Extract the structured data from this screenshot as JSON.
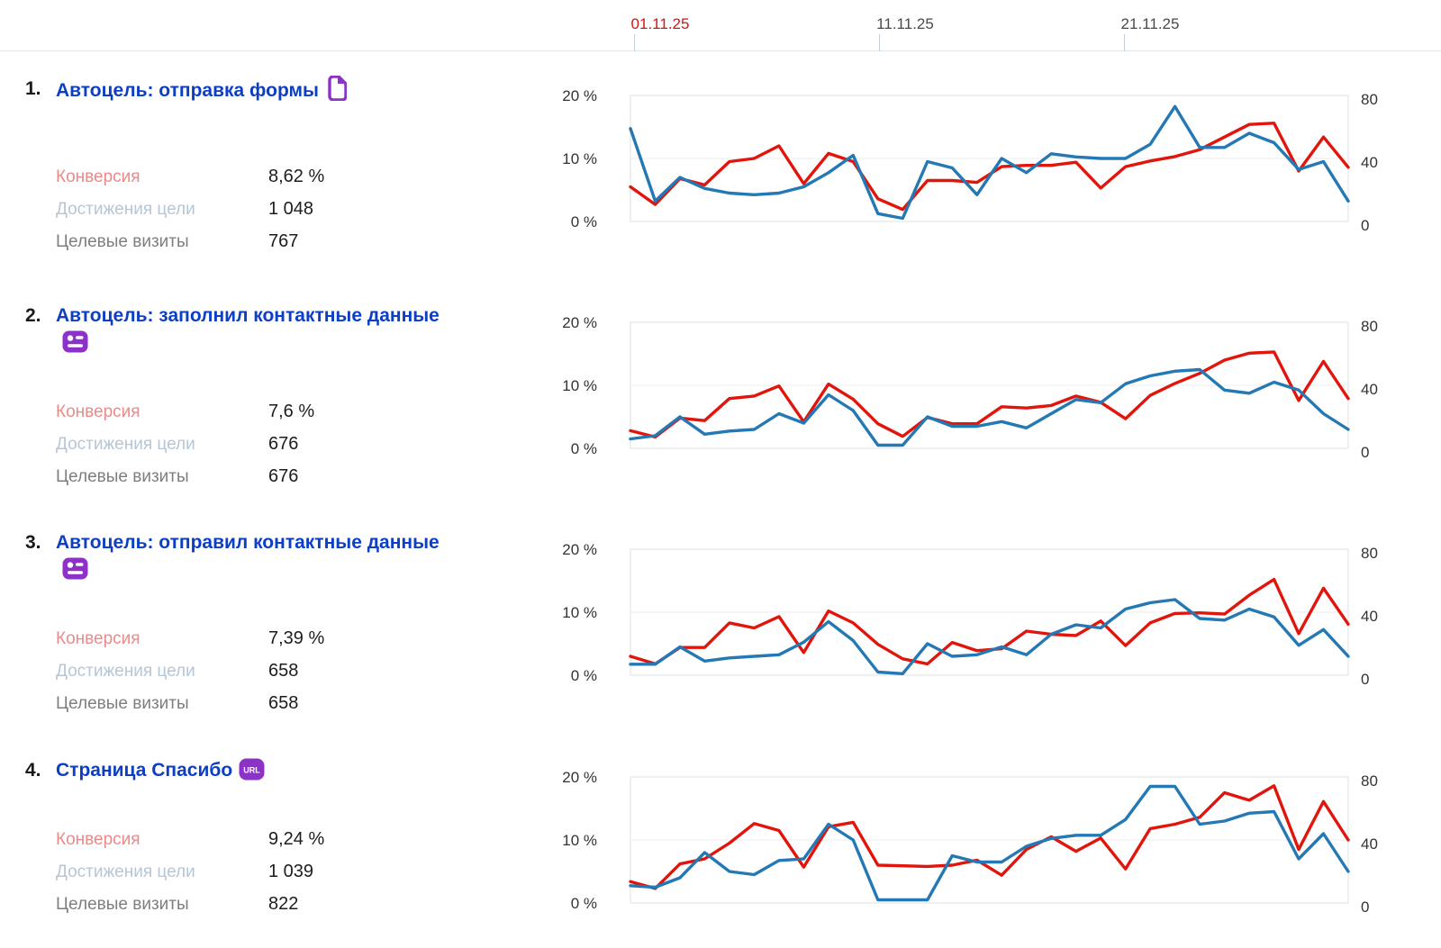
{
  "header": {
    "date_ticks": [
      {
        "label": "01.11.25",
        "highlighted": true
      },
      {
        "label": "11.11.25",
        "highlighted": false
      },
      {
        "label": "21.11.25",
        "highlighted": false
      }
    ]
  },
  "stats_labels": {
    "conversion": "Конверсия",
    "reaches": "Достижения цели",
    "visits": "Целевые визиты"
  },
  "colors": {
    "conversion_line": "#e2150c",
    "reaches_line": "#2478b4",
    "goal_title": "#0d3fc5",
    "highlight_date": "#d41411",
    "goal_icon_purple": "#8d32c7",
    "conversion_label": "#ea8a8a",
    "reaches_label": "#b7c6d4",
    "visits_label": "#7e7e7e"
  },
  "goals": [
    {
      "number": "1.",
      "title": "Автоцель: отправка формы",
      "icon": "page-goal-icon",
      "stats": {
        "conversion_value": "8,62 %",
        "reaches_value": "1 048",
        "visits_value": "767"
      }
    },
    {
      "number": "2.",
      "title": "Автоцель: заполнил контактные данные",
      "icon": "contact-data-goal-icon",
      "stats": {
        "conversion_value": "7,6 %",
        "reaches_value": "676",
        "visits_value": "676"
      }
    },
    {
      "number": "3.",
      "title": "Автоцель: отправил контактные данные",
      "icon": "contact-data-goal-icon",
      "stats": {
        "conversion_value": "7,39 %",
        "reaches_value": "658",
        "visits_value": "658"
      }
    },
    {
      "number": "4.",
      "title": "Страница Спасибо",
      "icon": "url-goal-icon",
      "stats": {
        "conversion_value": "9,24 %",
        "reaches_value": "1 039",
        "visits_value": "822"
      }
    }
  ],
  "chart_data": [
    {
      "type": "line",
      "title": "Автоцель: отправка формы — динамика",
      "x_tick_labels": [
        "01.11.25",
        "11.11.25",
        "21.11.25"
      ],
      "x_days": 30,
      "left_axis": {
        "ticks": [
          "20 %",
          "10 %",
          "0 %"
        ],
        "range": [
          0,
          20
        ],
        "unit": "%"
      },
      "right_axis": {
        "ticks": [
          "80",
          "40",
          "0"
        ],
        "range": [
          0,
          80
        ]
      },
      "grid": "horizontal",
      "legend": "none",
      "series": [
        {
          "name": "conversion-red",
          "axis": "left",
          "color": "#e2150c",
          "values": [
            5.5,
            2.7,
            6.8,
            5.8,
            9.5,
            10.0,
            12.0,
            6.0,
            10.8,
            9.5,
            3.6,
            1.9,
            6.5,
            6.5,
            6.2,
            8.7,
            8.9,
            8.9,
            9.4,
            5.3,
            8.7,
            9.6,
            10.3,
            11.4,
            13.4,
            15.4,
            15.6,
            8.0,
            13.4,
            8.6
          ]
        },
        {
          "name": "reaches-blue",
          "axis": "right",
          "color": "#2478b4",
          "values": [
            59,
            13,
            28,
            21,
            18,
            17,
            18,
            22,
            31,
            42,
            5,
            2,
            38,
            34,
            17,
            40,
            31,
            43,
            41,
            40,
            40,
            49,
            73,
            47,
            47,
            56,
            50,
            33,
            38,
            13
          ]
        }
      ]
    },
    {
      "type": "line",
      "title": "Автоцель: заполнил контактные данные — динамика",
      "x_tick_labels": [
        "01.11.25",
        "11.11.25",
        "21.11.25"
      ],
      "x_days": 30,
      "left_axis": {
        "ticks": [
          "20 %",
          "10 %",
          "0 %"
        ],
        "range": [
          0,
          20
        ],
        "unit": "%"
      },
      "right_axis": {
        "ticks": [
          "80",
          "40",
          "0"
        ],
        "range": [
          0,
          80
        ]
      },
      "grid": "horizontal",
      "legend": "none",
      "series": [
        {
          "name": "conversion-red",
          "axis": "left",
          "color": "#e2150c",
          "values": [
            2.8,
            1.8,
            4.8,
            4.4,
            7.9,
            8.3,
            9.9,
            4.2,
            10.2,
            7.8,
            3.9,
            1.9,
            4.9,
            3.9,
            3.9,
            6.6,
            6.4,
            6.8,
            8.3,
            7.3,
            4.7,
            8.4,
            10.3,
            11.9,
            14.0,
            15.1,
            15.3,
            7.6,
            13.8,
            7.9
          ]
        },
        {
          "name": "reaches-blue",
          "axis": "right",
          "color": "#2478b4",
          "values": [
            6,
            8,
            20,
            9,
            11,
            12,
            22,
            16,
            34,
            24,
            2,
            2,
            20,
            14,
            14,
            17,
            13,
            22,
            31,
            29,
            41,
            46,
            49,
            50,
            37,
            35,
            42,
            37,
            22,
            12
          ]
        }
      ]
    },
    {
      "type": "line",
      "title": "Автоцель: отправил контактные данные — динамика",
      "x_tick_labels": [
        "01.11.25",
        "11.11.25",
        "21.11.25"
      ],
      "x_days": 30,
      "left_axis": {
        "ticks": [
          "20 %",
          "10 %",
          "0 %"
        ],
        "range": [
          0,
          20
        ],
        "unit": "%"
      },
      "right_axis": {
        "ticks": [
          "80",
          "40",
          "0"
        ],
        "range": [
          0,
          80
        ]
      },
      "grid": "horizontal",
      "legend": "none",
      "series": [
        {
          "name": "conversion-red",
          "axis": "left",
          "color": "#e2150c",
          "values": [
            3.0,
            1.8,
            4.4,
            4.4,
            8.3,
            7.5,
            9.3,
            3.6,
            10.2,
            8.3,
            4.9,
            2.6,
            1.8,
            5.2,
            3.9,
            4.2,
            7.0,
            6.5,
            6.3,
            8.6,
            4.7,
            8.3,
            9.8,
            9.9,
            9.7,
            12.7,
            15.2,
            6.6,
            13.8,
            8.1
          ]
        },
        {
          "name": "reaches-blue",
          "axis": "right",
          "color": "#2478b4",
          "values": [
            7,
            7,
            18,
            9,
            11,
            12,
            13,
            21,
            34,
            22,
            2,
            1,
            20,
            12,
            13,
            18,
            13,
            26,
            32,
            30,
            42,
            46,
            48,
            36,
            35,
            42,
            37,
            19,
            29,
            12
          ]
        }
      ]
    },
    {
      "type": "line",
      "title": "Страница Спасибо — динамика",
      "x_tick_labels": [
        "01.11.25",
        "11.11.25",
        "21.11.25"
      ],
      "x_days": 30,
      "left_axis": {
        "ticks": [
          "20 %",
          "10 %",
          "0 %"
        ],
        "range": [
          0,
          20
        ],
        "unit": "%"
      },
      "right_axis": {
        "ticks": [
          "80",
          "40",
          "0"
        ],
        "range": [
          0,
          80
        ]
      },
      "grid": "horizontal",
      "legend": "none",
      "series": [
        {
          "name": "conversion-red",
          "axis": "left",
          "color": "#e2150c",
          "values": [
            3.4,
            2.3,
            6.2,
            7.0,
            9.5,
            12.6,
            11.5,
            5.7,
            12.1,
            12.8,
            6.0,
            5.9,
            5.8,
            6.0,
            6.8,
            4.4,
            8.5,
            10.5,
            8.2,
            10.3,
            5.4,
            11.8,
            12.5,
            13.6,
            17.5,
            16.3,
            18.6,
            8.5,
            16.1,
            10.0
          ]
        },
        {
          "name": "reaches-blue",
          "axis": "right",
          "color": "#2478b4",
          "values": [
            11,
            10,
            16,
            32,
            20,
            18,
            27,
            28,
            50,
            40,
            2,
            2,
            2,
            30,
            26,
            26,
            36,
            41,
            43,
            43,
            53,
            74,
            74,
            50,
            52,
            57,
            58,
            28,
            44,
            20
          ]
        }
      ]
    }
  ]
}
